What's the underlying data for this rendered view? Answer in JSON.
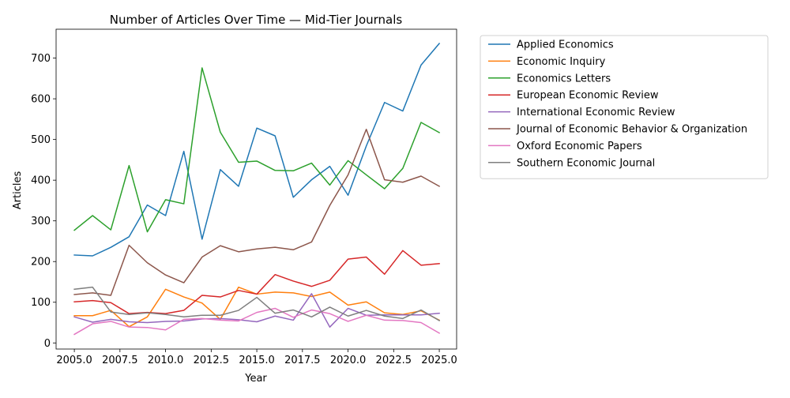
{
  "chart_data": {
    "type": "line",
    "title": "Number of Articles Over Time — Mid-Tier Journals",
    "xlabel": "Year",
    "ylabel": "Articles",
    "xlim": [
      2004.0,
      2025.95
    ],
    "ylim": [
      -15,
      771
    ],
    "xticks": [
      2005.0,
      2007.5,
      2010.0,
      2012.5,
      2015.0,
      2017.5,
      2020.0,
      2022.5,
      2025.0
    ],
    "xtick_labels": [
      "2005.0",
      "2007.5",
      "2010.0",
      "2012.5",
      "2015.0",
      "2017.5",
      "2020.0",
      "2022.5",
      "2025.0"
    ],
    "yticks": [
      0,
      100,
      200,
      300,
      400,
      500,
      600,
      700
    ],
    "ytick_labels": [
      "0",
      "100",
      "200",
      "300",
      "400",
      "500",
      "600",
      "700"
    ],
    "grid": false,
    "legend_position": "outside-right-top",
    "x": [
      2005,
      2006,
      2007,
      2008,
      2009,
      2010,
      2011,
      2012,
      2013,
      2014,
      2015,
      2016,
      2017,
      2018,
      2019,
      2020,
      2021,
      2022,
      2023,
      2024,
      2025
    ],
    "series": [
      {
        "name": "Applied Economics",
        "color": "#1f77b4",
        "values": [
          216,
          214,
          235,
          261,
          339,
          313,
          471,
          255,
          426,
          385,
          528,
          509,
          358,
          401,
          434,
          363,
          484,
          591,
          570,
          683,
          736
        ]
      },
      {
        "name": "Economic Inquiry",
        "color": "#ff7f0e",
        "values": [
          67,
          67,
          80,
          40,
          64,
          132,
          113,
          98,
          58,
          137,
          120,
          125,
          123,
          114,
          125,
          93,
          101,
          74,
          70,
          79,
          56
        ]
      },
      {
        "name": "Economics Letters",
        "color": "#2ca02c",
        "values": [
          277,
          313,
          278,
          436,
          273,
          352,
          342,
          676,
          518,
          444,
          447,
          424,
          423,
          442,
          388,
          448,
          413,
          379,
          429,
          542,
          517
        ]
      },
      {
        "name": "European Economic Review",
        "color": "#d62728",
        "values": [
          101,
          104,
          99,
          72,
          75,
          72,
          80,
          117,
          113,
          129,
          120,
          168,
          152,
          139,
          154,
          206,
          211,
          169,
          227,
          191,
          195
        ]
      },
      {
        "name": "International Economic Review",
        "color": "#9467bd",
        "values": [
          64,
          51,
          58,
          52,
          50,
          53,
          54,
          59,
          60,
          57,
          52,
          66,
          56,
          121,
          39,
          85,
          68,
          69,
          69,
          69,
          73
        ]
      },
      {
        "name": "Journal of Economic Behavior & Organization",
        "color": "#8c564b",
        "values": [
          119,
          123,
          117,
          240,
          197,
          167,
          148,
          211,
          239,
          224,
          231,
          235,
          229,
          248,
          338,
          413,
          525,
          401,
          395,
          410,
          385
        ]
      },
      {
        "name": "Oxford Economic Papers",
        "color": "#e377c2",
        "values": [
          21,
          47,
          53,
          39,
          38,
          32,
          58,
          60,
          56,
          54,
          75,
          85,
          63,
          81,
          72,
          53,
          68,
          56,
          55,
          50,
          24
        ]
      },
      {
        "name": "Southern Economic Journal",
        "color": "#7f7f7f",
        "values": [
          132,
          137,
          76,
          70,
          74,
          70,
          64,
          68,
          68,
          80,
          112,
          73,
          81,
          64,
          88,
          66,
          80,
          66,
          60,
          81,
          55
        ]
      }
    ]
  }
}
